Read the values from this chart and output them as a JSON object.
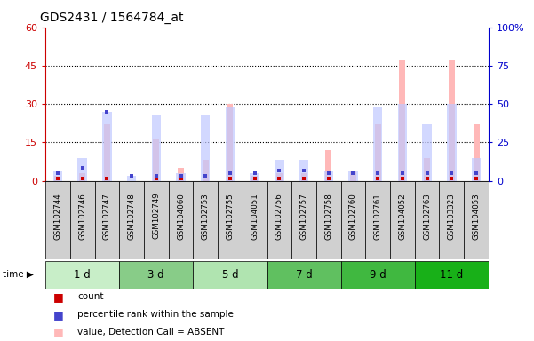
{
  "title": "GDS2431 / 1564784_at",
  "samples": [
    "GSM102744",
    "GSM102746",
    "GSM102747",
    "GSM102748",
    "GSM102749",
    "GSM104060",
    "GSM102753",
    "GSM102755",
    "GSM104051",
    "GSM102756",
    "GSM102757",
    "GSM102758",
    "GSM102760",
    "GSM102761",
    "GSM104052",
    "GSM102763",
    "GSM103323",
    "GSM104053"
  ],
  "groups": [
    {
      "label": "1 d",
      "indices": [
        0,
        1,
        2
      ],
      "color": "#d0f0d0"
    },
    {
      "label": "3 d",
      "indices": [
        3,
        4,
        5
      ],
      "color": "#a0dca0"
    },
    {
      "label": "5 d",
      "indices": [
        6,
        7,
        8
      ],
      "color": "#c0ecc0"
    },
    {
      "label": "7 d",
      "indices": [
        9,
        10,
        11
      ],
      "color": "#80d080"
    },
    {
      "label": "9 d",
      "indices": [
        12,
        13,
        14
      ],
      "color": "#50c050"
    },
    {
      "label": "11 d",
      "indices": [
        15,
        16,
        17
      ],
      "color": "#20b820"
    }
  ],
  "count_values": [
    1,
    1,
    1,
    0,
    1,
    1,
    2,
    1,
    1,
    1,
    1,
    1,
    0,
    1,
    1,
    1,
    1,
    1
  ],
  "percentile_rank_values": [
    3,
    5,
    27,
    2,
    2,
    2,
    2,
    3,
    3,
    4,
    4,
    3,
    3,
    3,
    3,
    3,
    3,
    3
  ],
  "absent_value_heights": [
    2,
    3,
    22,
    0,
    16,
    5,
    8,
    30,
    2,
    3,
    3,
    12,
    4,
    22,
    47,
    9,
    47,
    22
  ],
  "absent_rank_heights": [
    4,
    9,
    27,
    2,
    26,
    3,
    26,
    29,
    3,
    8,
    8,
    4,
    4,
    29,
    30,
    22,
    30,
    9
  ],
  "left_yticks": [
    0,
    15,
    30,
    45,
    60
  ],
  "right_yticks": [
    0,
    25,
    50,
    75,
    100
  ],
  "ylim_left": [
    0,
    60
  ],
  "ylim_right": [
    0,
    100
  ],
  "left_color": "#cc0000",
  "right_color": "#0000cc",
  "absent_bar_color": "#ffb8b8",
  "absent_rank_color": "#c0c8ff",
  "count_color": "#cc0000",
  "pct_color": "#4444cc",
  "bg_color": "#ffffff",
  "plot_bg_color": "#ffffff"
}
